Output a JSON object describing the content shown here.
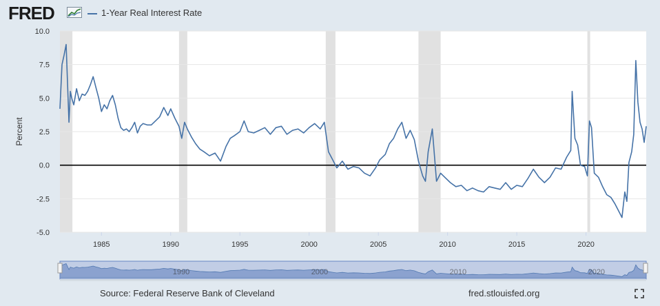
{
  "header": {
    "logo_text": "FRED",
    "logo_icon": "fred-line-chart-logo-icon",
    "legend_label": "1-Year Real Interest Rate",
    "series_color": "#4572a7"
  },
  "footer": {
    "source": "Source: Federal Reserve Bank of Cleveland",
    "site": "fred.stlouisfed.org",
    "fullscreen_icon": "fullscreen-icon"
  },
  "navigator": {
    "labels": [
      "1990",
      "2000",
      "2010",
      "2020"
    ]
  },
  "chart_data": {
    "type": "line",
    "title": "",
    "xlabel": "",
    "ylabel": "Percent",
    "xlim": [
      1982.0,
      2024.35
    ],
    "ylim": [
      -5.0,
      10.0
    ],
    "yticks": [
      10.0,
      7.5,
      5.0,
      2.5,
      0.0,
      -2.5,
      -5.0
    ],
    "ytick_labels": [
      "10.0",
      "7.5",
      "5.0",
      "2.5",
      "0.0",
      "-2.5",
      "-5.0"
    ],
    "xticks": [
      1985,
      1990,
      1995,
      2000,
      2005,
      2010,
      2015,
      2020
    ],
    "xtick_labels": [
      "1985",
      "1990",
      "1995",
      "2000",
      "2005",
      "2010",
      "2015",
      "2020"
    ],
    "grid": "horizontal",
    "zero_line": true,
    "recession_shading": [
      [
        2000.0,
        2000.0
      ]
    ],
    "recessions": [
      [
        1982.0,
        1982.9
      ],
      [
        1990.6,
        1991.2
      ],
      [
        2001.2,
        2001.9
      ],
      [
        2007.9,
        2009.5
      ],
      [
        2020.1,
        2020.3
      ]
    ],
    "series": [
      {
        "name": "1-Year Real Interest Rate",
        "color": "#4572a7",
        "x": [
          1982.0,
          1982.15,
          1982.3,
          1982.45,
          1982.55,
          1982.65,
          1982.75,
          1982.85,
          1983.0,
          1983.2,
          1983.4,
          1983.6,
          1983.8,
          1984.0,
          1984.2,
          1984.4,
          1984.6,
          1984.8,
          1985.0,
          1985.2,
          1985.4,
          1985.6,
          1985.8,
          1986.0,
          1986.2,
          1986.4,
          1986.6,
          1986.8,
          1987.0,
          1987.2,
          1987.4,
          1987.6,
          1987.8,
          1988.0,
          1988.3,
          1988.6,
          1988.9,
          1989.2,
          1989.5,
          1989.8,
          1990.0,
          1990.3,
          1990.6,
          1990.8,
          1991.0,
          1991.2,
          1991.5,
          1991.8,
          1992.1,
          1992.4,
          1992.8,
          1993.2,
          1993.6,
          1994.0,
          1994.3,
          1994.6,
          1995.0,
          1995.3,
          1995.6,
          1996.0,
          1996.4,
          1996.8,
          1997.2,
          1997.6,
          1998.0,
          1998.4,
          1998.8,
          1999.2,
          1999.6,
          2000.0,
          2000.4,
          2000.8,
          2001.1,
          2001.4,
          2001.7,
          2002.0,
          2002.4,
          2002.8,
          2003.2,
          2003.6,
          2004.0,
          2004.4,
          2004.8,
          2005.1,
          2005.5,
          2005.8,
          2006.1,
          2006.4,
          2006.7,
          2007.0,
          2007.3,
          2007.6,
          2007.9,
          2008.2,
          2008.4,
          2008.6,
          2008.9,
          2009.2,
          2009.5,
          2009.8,
          2010.2,
          2010.6,
          2011.0,
          2011.4,
          2011.8,
          2012.2,
          2012.6,
          2013.0,
          2013.4,
          2013.8,
          2014.2,
          2014.6,
          2015.0,
          2015.4,
          2015.8,
          2016.2,
          2016.6,
          2017.0,
          2017.4,
          2017.8,
          2018.2,
          2018.6,
          2018.9,
          2019.0,
          2019.2,
          2019.4,
          2019.6,
          2019.9,
          2020.1,
          2020.25,
          2020.4,
          2020.6,
          2020.9,
          2021.2,
          2021.5,
          2021.8,
          2022.1,
          2022.4,
          2022.6,
          2022.8,
          2022.95,
          2023.1,
          2023.3,
          2023.45,
          2023.6,
          2023.75,
          2023.9,
          2024.05,
          2024.2,
          2024.35
        ],
        "y": [
          4.2,
          7.5,
          8.2,
          9.0,
          6.0,
          3.2,
          5.5,
          5.0,
          4.5,
          5.7,
          4.8,
          5.3,
          5.2,
          5.5,
          6.0,
          6.6,
          5.8,
          5.0,
          4.0,
          4.5,
          4.2,
          4.8,
          5.2,
          4.5,
          3.5,
          2.8,
          2.6,
          2.7,
          2.5,
          2.8,
          3.2,
          2.4,
          2.9,
          3.1,
          3.0,
          3.0,
          3.3,
          3.6,
          4.3,
          3.7,
          4.2,
          3.5,
          2.9,
          2.0,
          3.2,
          2.7,
          2.1,
          1.6,
          1.2,
          1.0,
          0.7,
          0.9,
          0.3,
          1.4,
          2.0,
          2.2,
          2.5,
          3.3,
          2.5,
          2.4,
          2.6,
          2.8,
          2.3,
          2.8,
          2.9,
          2.3,
          2.6,
          2.7,
          2.4,
          2.8,
          3.1,
          2.7,
          3.2,
          1.0,
          0.4,
          -0.2,
          0.3,
          -0.3,
          -0.1,
          -0.2,
          -0.6,
          -0.8,
          -0.2,
          0.4,
          0.8,
          1.6,
          2.0,
          2.7,
          3.2,
          2.0,
          2.6,
          1.9,
          0.3,
          -0.8,
          -1.2,
          1.0,
          2.7,
          -1.2,
          -0.6,
          -0.9,
          -1.3,
          -1.6,
          -1.5,
          -1.9,
          -1.7,
          -1.9,
          -2.0,
          -1.6,
          -1.7,
          -1.8,
          -1.3,
          -1.8,
          -1.5,
          -1.6,
          -1.0,
          -0.3,
          -0.9,
          -1.3,
          -0.9,
          -0.2,
          -0.3,
          0.6,
          1.1,
          5.5,
          2.0,
          1.5,
          0.0,
          -0.1,
          -0.8,
          3.3,
          2.8,
          -0.6,
          -0.9,
          -1.6,
          -2.2,
          -2.4,
          -2.9,
          -3.5,
          -3.9,
          -2.0,
          -2.7,
          0.2,
          1.0,
          2.3,
          7.8,
          4.7,
          3.2,
          2.7,
          1.7,
          2.9
        ]
      }
    ]
  }
}
